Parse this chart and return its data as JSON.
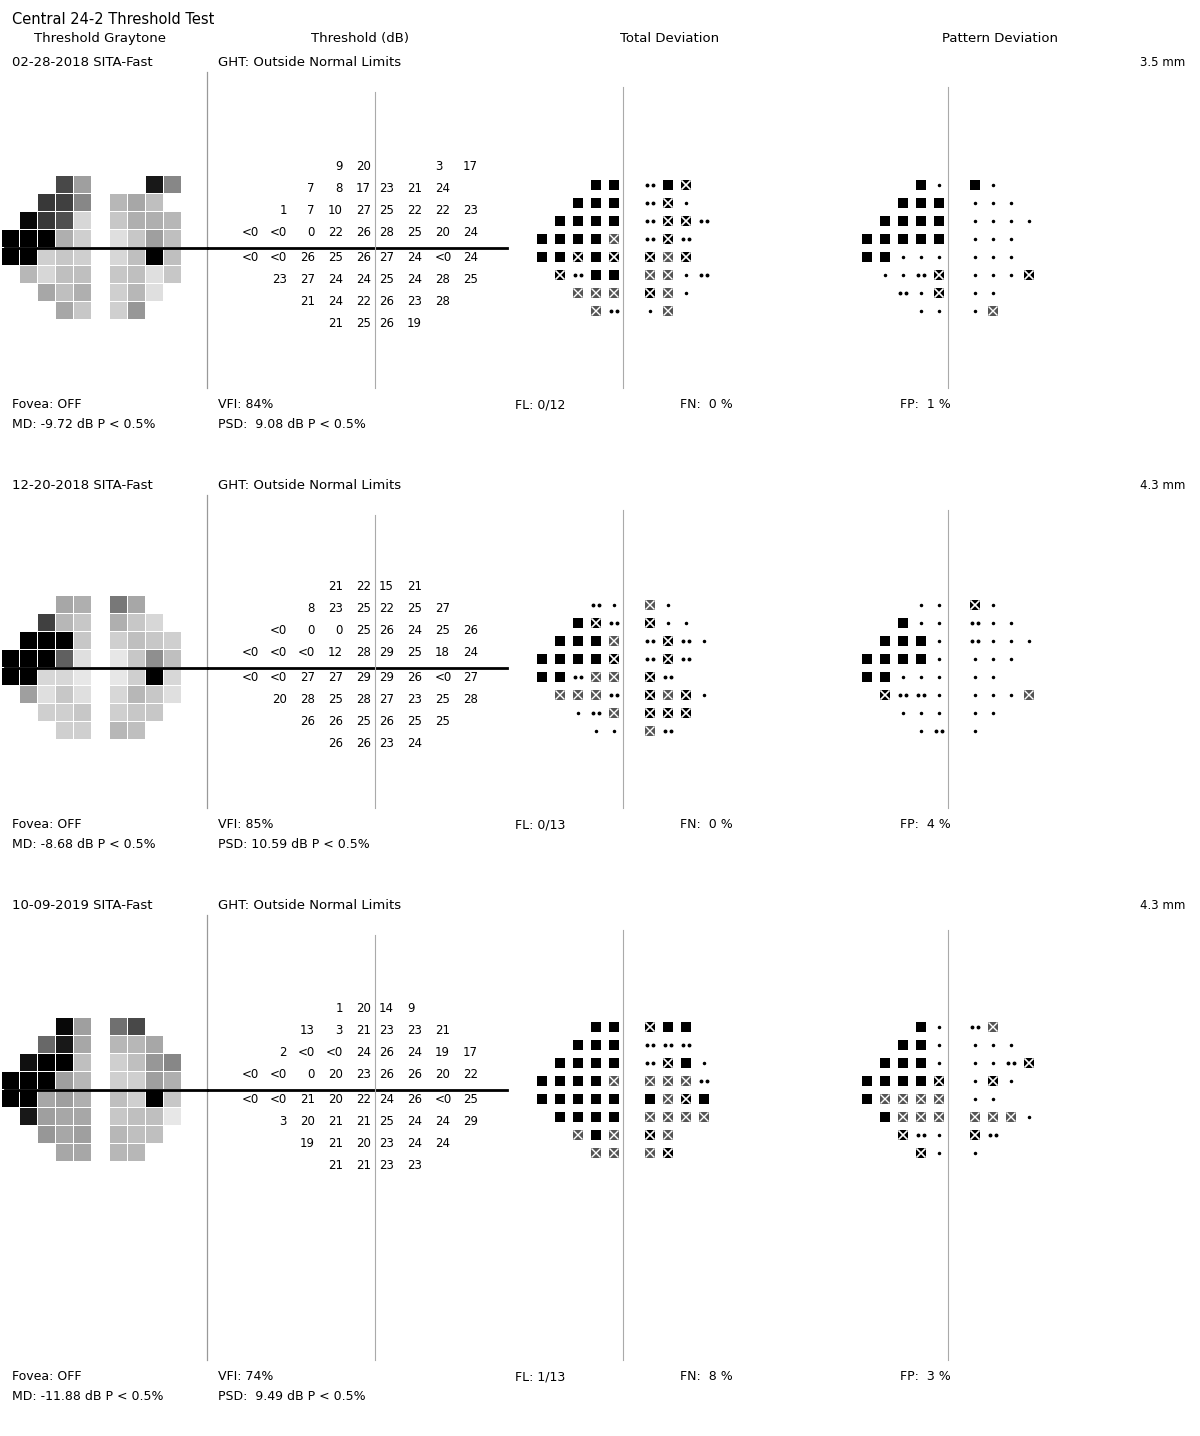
{
  "title": "Central 24-2 Threshold Test",
  "col_headers": [
    "Threshold Graytone",
    "Threshold (dB)",
    "Total Deviation",
    "Pattern Deviation"
  ],
  "visits": [
    {
      "date": "02-28-2018 SITA-Fast",
      "ght": "GHT: Outside Normal Limits",
      "mm": "3.5 mm",
      "fovea": "Fovea: OFF",
      "vfi": "VFI: 84%",
      "fl": "FL: 0/12",
      "fn": "FN:  0 %",
      "fp": "FP:  1 %",
      "md": "MD: -9.72 dB P < 0.5%",
      "psd": "PSD:  9.08 dB P < 0.5%"
    },
    {
      "date": "12-20-2018 SITA-Fast",
      "ght": "GHT: Outside Normal Limits",
      "mm": "4.3 mm",
      "fovea": "Fovea: OFF",
      "vfi": "VFI: 85%",
      "fl": "FL: 0/13",
      "fn": "FN:  0 %",
      "fp": "FP:  4 %",
      "md": "MD: -8.68 dB P < 0.5%",
      "psd": "PSD: 10.59 dB P < 0.5%"
    },
    {
      "date": "10-09-2019 SITA-Fast",
      "ght": "GHT: Outside Normal Limits",
      "mm": "4.3 mm",
      "fovea": "Fovea: OFF",
      "vfi": "VFI: 74%",
      "fl": "FL: 1/13",
      "fn": "FN:  8 %",
      "fp": "FP:  3 %",
      "md": "MD: -11.88 dB P < 0.5%",
      "psd": "PSD:  9.49 dB P < 0.5%"
    }
  ],
  "threshold_upper": [
    [
      [
        null,
        null,
        null,
        null,
        9,
        20,
        null,
        null,
        null,
        3,
        17,
        null
      ],
      [
        null,
        null,
        null,
        7,
        8,
        17,
        null,
        23,
        21,
        24,
        null,
        null
      ],
      [
        null,
        null,
        1,
        7,
        10,
        27,
        null,
        25,
        22,
        22,
        23,
        null
      ],
      [
        null,
        "<0",
        "<0",
        0,
        22,
        26,
        null,
        28,
        25,
        20,
        24,
        null
      ]
    ],
    [
      [
        null,
        null,
        null,
        null,
        21,
        22,
        null,
        15,
        21,
        null,
        null,
        null
      ],
      [
        null,
        null,
        null,
        8,
        23,
        25,
        null,
        22,
        25,
        27,
        null,
        null
      ],
      [
        null,
        null,
        "<0",
        0,
        0,
        25,
        null,
        26,
        24,
        25,
        26,
        null
      ],
      [
        null,
        "<0",
        "<0",
        "<0",
        12,
        28,
        null,
        29,
        25,
        18,
        24,
        null
      ]
    ],
    [
      [
        null,
        null,
        null,
        null,
        1,
        20,
        null,
        14,
        9,
        null,
        null,
        null
      ],
      [
        null,
        null,
        null,
        13,
        3,
        21,
        null,
        23,
        23,
        21,
        null,
        null
      ],
      [
        null,
        null,
        2,
        "<0",
        "<0",
        24,
        null,
        26,
        24,
        19,
        17,
        null
      ],
      [
        null,
        "<0",
        "<0",
        0,
        20,
        23,
        null,
        26,
        26,
        20,
        22,
        null
      ]
    ]
  ],
  "threshold_lower": [
    [
      [
        null,
        "<0",
        "<0",
        26,
        25,
        26,
        null,
        27,
        24,
        "<0",
        24,
        null
      ],
      [
        null,
        null,
        23,
        27,
        24,
        24,
        null,
        25,
        24,
        28,
        25,
        null
      ],
      [
        null,
        null,
        null,
        21,
        24,
        22,
        null,
        26,
        23,
        28,
        null,
        null
      ],
      [
        null,
        null,
        null,
        null,
        21,
        25,
        null,
        26,
        19,
        null,
        null,
        null
      ]
    ],
    [
      [
        null,
        "<0",
        "<0",
        27,
        27,
        29,
        null,
        29,
        26,
        "<0",
        27,
        null
      ],
      [
        null,
        null,
        20,
        28,
        25,
        28,
        null,
        27,
        23,
        25,
        28,
        null
      ],
      [
        null,
        null,
        null,
        26,
        26,
        25,
        null,
        26,
        25,
        25,
        null,
        null
      ],
      [
        null,
        null,
        null,
        null,
        26,
        26,
        null,
        23,
        24,
        null,
        null,
        null
      ]
    ],
    [
      [
        null,
        "<0",
        "<0",
        21,
        20,
        22,
        null,
        24,
        26,
        "<0",
        25,
        null
      ],
      [
        null,
        null,
        3,
        20,
        21,
        21,
        null,
        25,
        24,
        24,
        29,
        null
      ],
      [
        null,
        null,
        null,
        19,
        21,
        20,
        null,
        23,
        24,
        24,
        null,
        null
      ],
      [
        null,
        null,
        null,
        null,
        21,
        21,
        null,
        23,
        23,
        null,
        null,
        null
      ]
    ]
  ],
  "bg_color": "#ffffff"
}
